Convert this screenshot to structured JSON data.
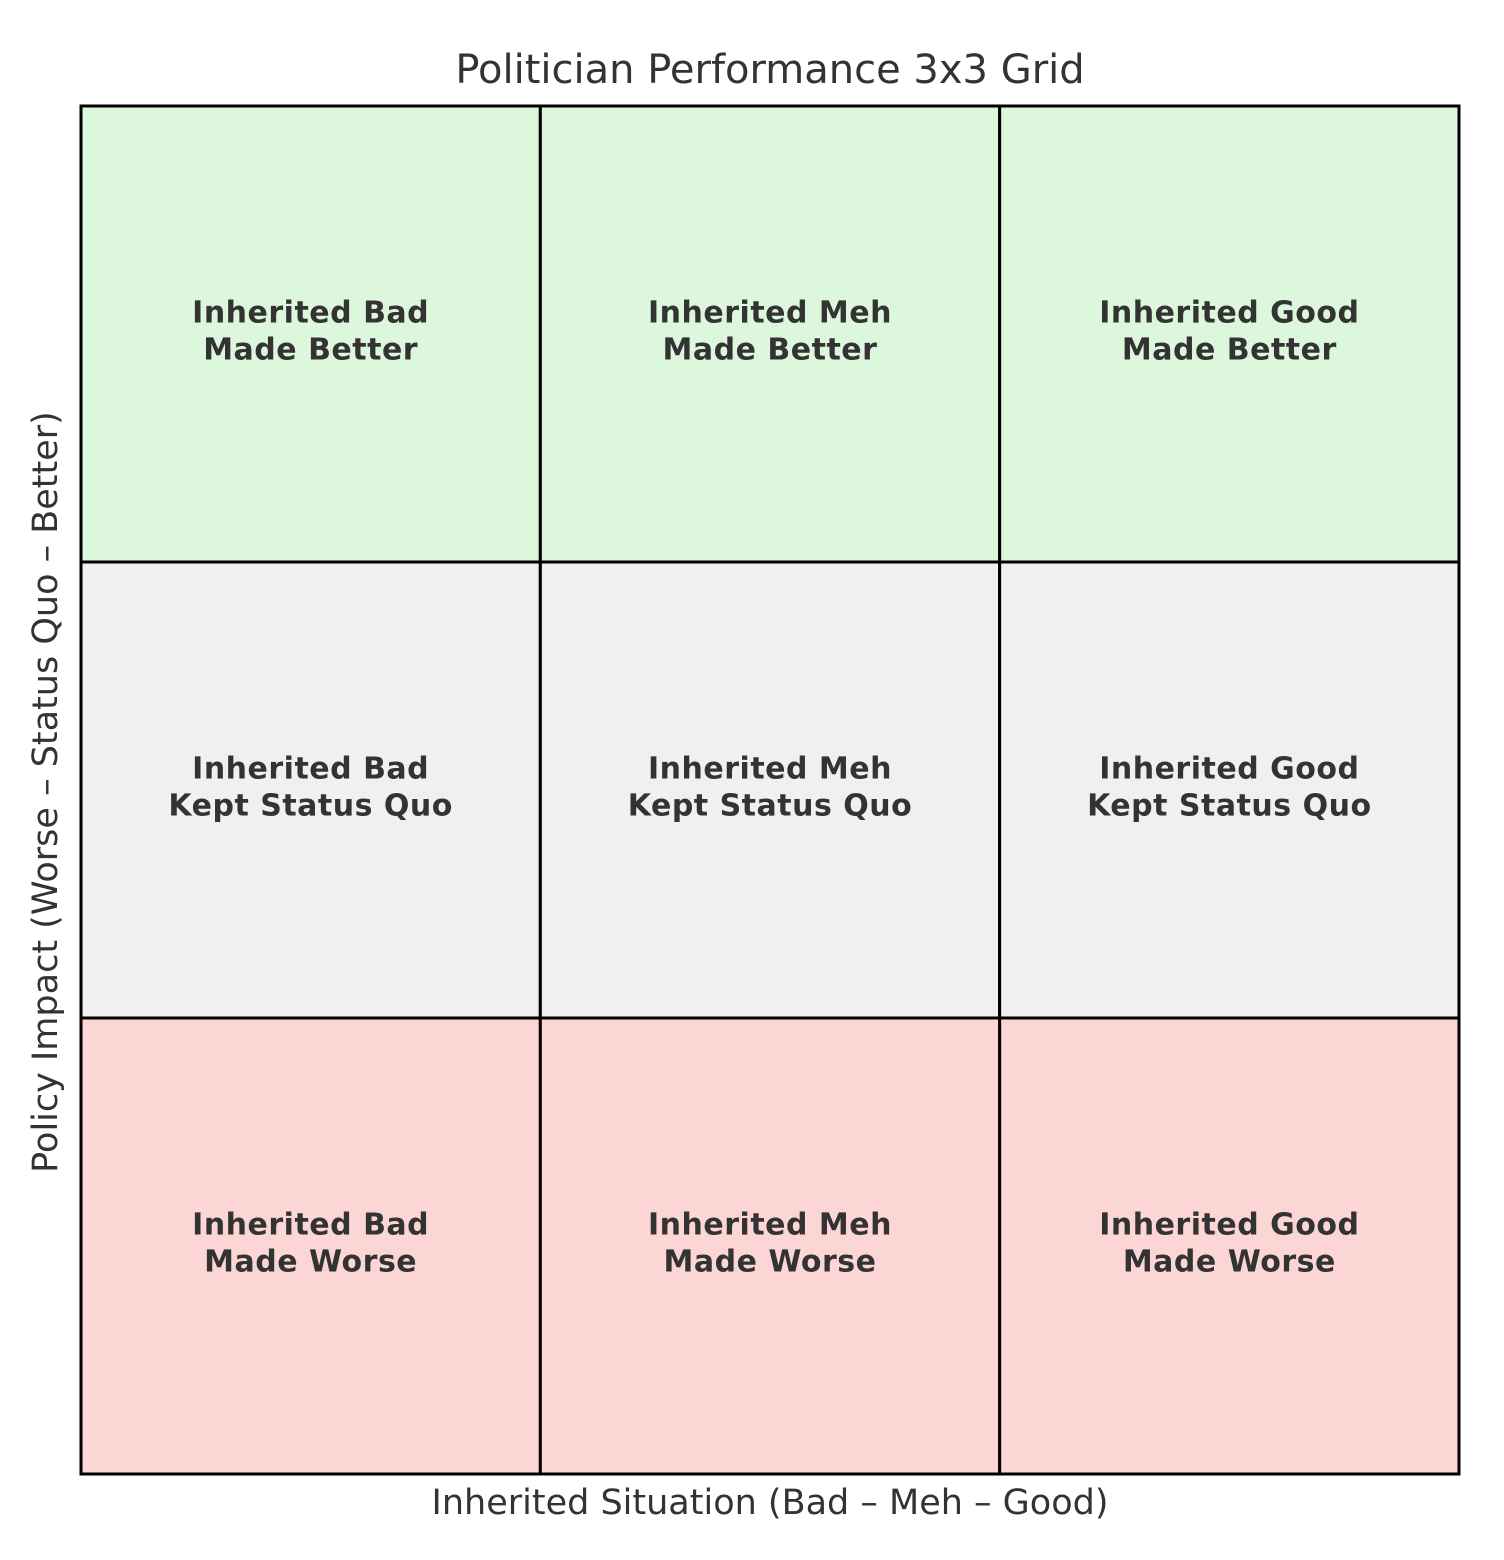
{
  "title": "Politician Performance 3x3 Grid",
  "x_axis_label": "Inherited Situation (Bad – Meh – Good)",
  "y_axis_label": "Policy Impact (Worse – Status Quo – Better)",
  "grid": {
    "rows": [
      [
        {
          "line1": "Inherited Bad",
          "line2": "Made Better"
        },
        {
          "line1": "Inherited Meh",
          "line2": "Made Better"
        },
        {
          "line1": "Inherited Good",
          "line2": "Made Better"
        }
      ],
      [
        {
          "line1": "Inherited Bad",
          "line2": "Kept Status Quo"
        },
        {
          "line1": "Inherited Meh",
          "line2": "Kept Status Quo"
        },
        {
          "line1": "Inherited Good",
          "line2": "Kept Status Quo"
        }
      ],
      [
        {
          "line1": "Inherited Bad",
          "line2": "Made Worse"
        },
        {
          "line1": "Inherited Meh",
          "line2": "Made Worse"
        },
        {
          "line1": "Inherited Good",
          "line2": "Made Worse"
        }
      ]
    ]
  }
}
